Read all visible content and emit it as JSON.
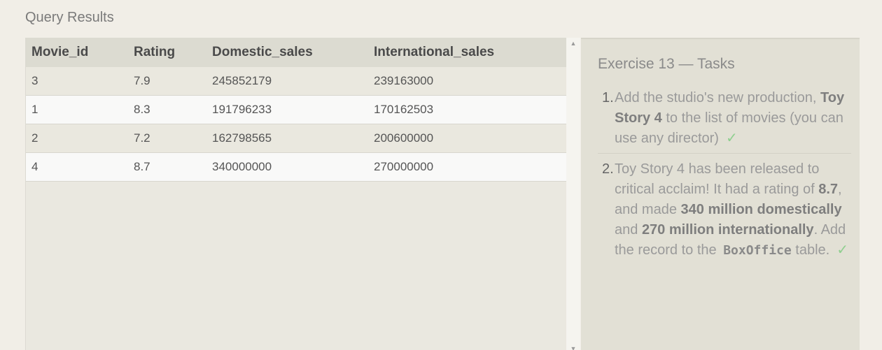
{
  "section_title": "Query Results",
  "table": {
    "columns": [
      "Movie_id",
      "Rating",
      "Domestic_sales",
      "International_sales"
    ],
    "rows": [
      [
        "3",
        "7.9",
        "245852179",
        "239163000"
      ],
      [
        "1",
        "8.3",
        "191796233",
        "170162503"
      ],
      [
        "2",
        "7.2",
        "162798565",
        "200600000"
      ],
      [
        "4",
        "8.7",
        "340000000",
        "270000000"
      ]
    ]
  },
  "tasks": {
    "title": "Exercise 13 — Tasks",
    "items": [
      {
        "number": "1.",
        "text_a": "Add the studio's new production, ",
        "bold_a": "Toy Story 4",
        "text_b": " to the list of movies (you can use any director)",
        "check": "✓"
      },
      {
        "number": "2.",
        "text_a": "Toy Story 4 has been released to critical acclaim! It had a rating of ",
        "bold_a": "8.7",
        "text_b": ", and made ",
        "bold_b": "340 million domestically",
        "text_c": " and ",
        "bold_c": "270 million internationally",
        "text_d": ". Add the record to the ",
        "code": "BoxOffice",
        "text_e": " table.",
        "check": "✓"
      }
    ]
  },
  "scrollbar": {
    "up_icon": "▲",
    "down_icon": "▼"
  }
}
